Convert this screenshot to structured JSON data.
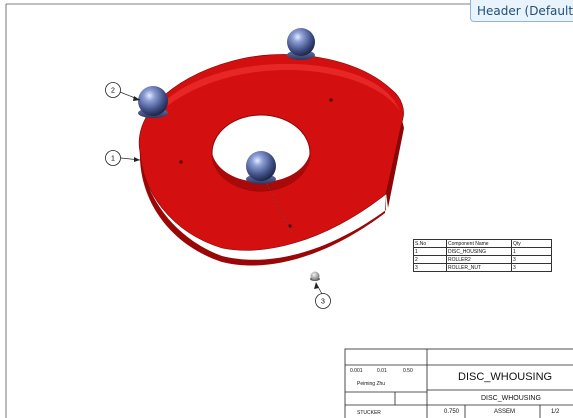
{
  "header": {
    "title": "Header (Default S"
  },
  "drawing": {
    "balloons": [
      "1",
      "2",
      "3"
    ],
    "colors": {
      "housing": "#d30f0f",
      "housing_dark": "#a30808",
      "roller": "#3f4f86",
      "background": "#ffffff"
    }
  },
  "bom": {
    "headers": [
      "S.No",
      "Component Name",
      "Qty"
    ],
    "rows": [
      {
        "no": "1",
        "name": "DISC_HOUSING",
        "qty": "1"
      },
      {
        "no": "2",
        "name": "ROLLER2",
        "qty": "3"
      },
      {
        "no": "3",
        "name": "ROLLER_NUT",
        "qty": "3"
      }
    ]
  },
  "title_block": {
    "tol_1": "0.001",
    "tol_2": "0.01",
    "tol_3": "0.50",
    "designer": "Peiming Zhu",
    "title_large": "DISC_WHOUSING",
    "title_small": "DISC_WHOUSING",
    "checker": "STUCKER",
    "scale": "0.750",
    "type": "ASSEM",
    "sheet": "1/2"
  }
}
